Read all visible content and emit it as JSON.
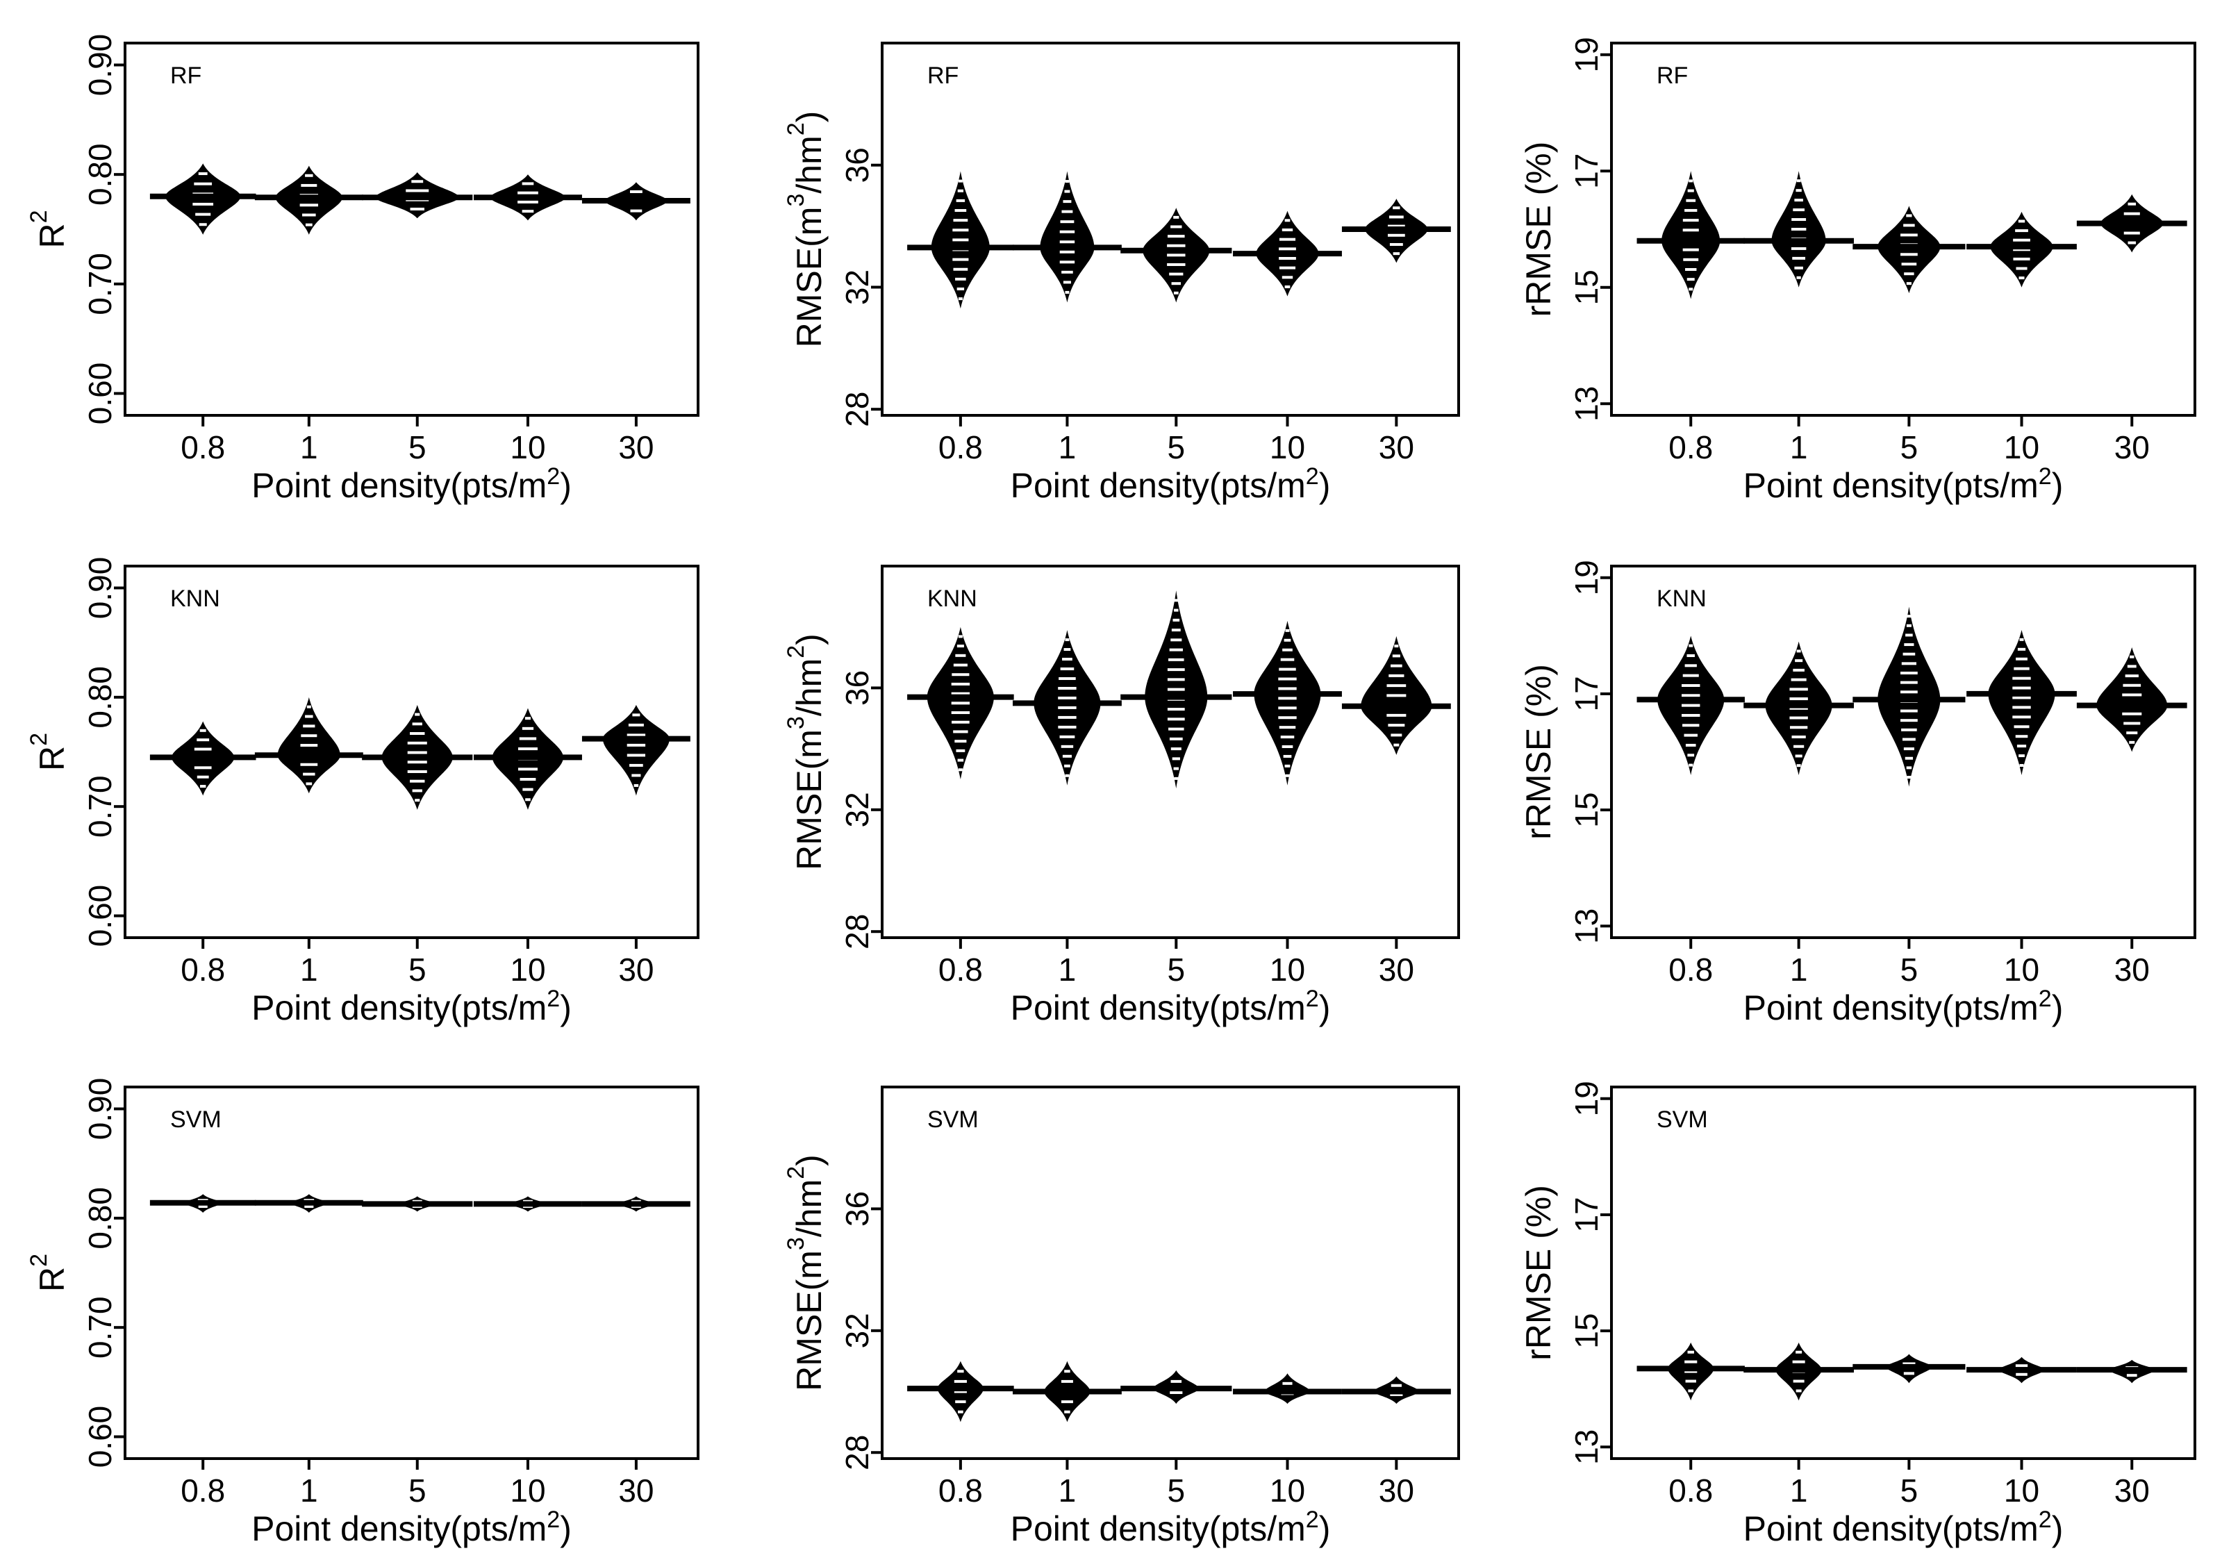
{
  "figure": {
    "x_axis_label": "Point density(pts/m²)",
    "colors": {
      "violin": "#000000",
      "stripe": "#ffffff",
      "background": "#ffffff"
    }
  },
  "chart_data": [
    {
      "type": "violin",
      "title": "",
      "panel_label": "RF",
      "metric": "R2",
      "ylabel": "R²",
      "ylim": [
        0.58,
        0.92
      ],
      "yticks": [
        "0.60",
        "0.70",
        "0.80",
        "0.90"
      ],
      "ytick_values": [
        0.6,
        0.7,
        0.8,
        0.9
      ],
      "xlabel": "Point density(pts/m²)",
      "categories": [
        "0.8",
        "1",
        "5",
        "10",
        "30"
      ],
      "series": [
        {
          "name": "RF R2",
          "mean": [
            0.78,
            0.779,
            0.779,
            0.779,
            0.776
          ],
          "min": [
            0.745,
            0.745,
            0.76,
            0.758,
            0.758
          ],
          "max": [
            0.81,
            0.808,
            0.802,
            0.8,
            0.793
          ],
          "width": [
            0.9,
            0.8,
            1.0,
            0.9,
            0.75
          ]
        }
      ]
    },
    {
      "type": "violin",
      "title": "",
      "panel_label": "RF",
      "metric": "RMSE",
      "ylabel": "RMSE(m³/hm²)",
      "ylim": [
        27.8,
        40.0
      ],
      "yticks": [
        "28",
        "32",
        "36"
      ],
      "ytick_values": [
        28,
        32,
        36
      ],
      "xlabel": "Point density(pts/m²)",
      "categories": [
        "0.8",
        "1",
        "5",
        "10",
        "30"
      ],
      "series": [
        {
          "name": "RF RMSE",
          "mean": [
            33.3,
            33.3,
            33.2,
            33.1,
            33.9
          ],
          "min": [
            31.3,
            31.5,
            31.5,
            31.7,
            32.8
          ],
          "max": [
            35.8,
            35.8,
            34.6,
            34.5,
            34.9
          ],
          "width": [
            0.7,
            0.65,
            0.8,
            0.75,
            0.75
          ]
        }
      ]
    },
    {
      "type": "violin",
      "title": "",
      "panel_label": "RF",
      "metric": "rRMSE",
      "ylabel": "rRMSE (%)",
      "ylim": [
        12.8,
        19.2
      ],
      "yticks": [
        "13",
        "15",
        "17",
        "19"
      ],
      "ytick_values": [
        13,
        15,
        17,
        19
      ],
      "xlabel": "Point density(pts/m²)",
      "categories": [
        "0.8",
        "1",
        "5",
        "10",
        "30"
      ],
      "series": [
        {
          "name": "RF rRMSE",
          "mean": [
            15.8,
            15.8,
            15.7,
            15.7,
            16.1
          ],
          "min": [
            14.8,
            15.0,
            14.9,
            15.0,
            15.6
          ],
          "max": [
            17.0,
            17.0,
            16.4,
            16.3,
            16.6
          ],
          "width": [
            0.7,
            0.65,
            0.75,
            0.75,
            0.75
          ]
        }
      ]
    },
    {
      "type": "violin",
      "title": "",
      "panel_label": "KNN",
      "metric": "R2",
      "ylabel": "R²",
      "ylim": [
        0.58,
        0.92
      ],
      "yticks": [
        "0.60",
        "0.70",
        "0.80",
        "0.90"
      ],
      "ytick_values": [
        0.6,
        0.7,
        0.8,
        0.9
      ],
      "xlabel": "Point density(pts/m²)",
      "categories": [
        "0.8",
        "1",
        "5",
        "10",
        "30"
      ],
      "series": [
        {
          "name": "KNN R2",
          "mean": [
            0.745,
            0.747,
            0.745,
            0.745,
            0.762
          ],
          "min": [
            0.71,
            0.712,
            0.697,
            0.697,
            0.71
          ],
          "max": [
            0.778,
            0.8,
            0.793,
            0.79,
            0.793
          ],
          "width": [
            0.75,
            0.75,
            0.85,
            0.85,
            0.8
          ]
        }
      ]
    },
    {
      "type": "violin",
      "title": "",
      "panel_label": "KNN",
      "metric": "RMSE",
      "ylabel": "RMSE(m³/hm²)",
      "ylim": [
        27.8,
        40.0
      ],
      "yticks": [
        "28",
        "32",
        "36"
      ],
      "ytick_values": [
        28,
        32,
        36
      ],
      "xlabel": "Point density(pts/m²)",
      "categories": [
        "0.8",
        "1",
        "5",
        "10",
        "30"
      ],
      "series": [
        {
          "name": "KNN RMSE",
          "mean": [
            35.7,
            35.5,
            35.7,
            35.8,
            35.4
          ],
          "min": [
            33.0,
            32.8,
            32.7,
            32.8,
            33.8
          ],
          "max": [
            38.0,
            37.9,
            39.2,
            38.2,
            37.7
          ],
          "width": [
            0.8,
            0.8,
            0.75,
            0.8,
            0.85
          ]
        }
      ]
    },
    {
      "type": "violin",
      "title": "",
      "panel_label": "KNN",
      "metric": "rRMSE",
      "ylabel": "rRMSE (%)",
      "ylim": [
        12.8,
        19.2
      ],
      "yticks": [
        "13",
        "15",
        "17",
        "19"
      ],
      "ytick_values": [
        13,
        15,
        17,
        19
      ],
      "xlabel": "Point density(pts/m²)",
      "categories": [
        "0.8",
        "1",
        "5",
        "10",
        "30"
      ],
      "series": [
        {
          "name": "KNN rRMSE",
          "mean": [
            16.9,
            16.8,
            16.9,
            17.0,
            16.8
          ],
          "min": [
            15.6,
            15.6,
            15.4,
            15.6,
            16.0
          ],
          "max": [
            18.0,
            17.9,
            18.5,
            18.1,
            17.8
          ],
          "width": [
            0.8,
            0.8,
            0.75,
            0.8,
            0.85
          ]
        }
      ]
    },
    {
      "type": "violin",
      "title": "",
      "panel_label": "SVM",
      "metric": "R2",
      "ylabel": "R²",
      "ylim": [
        0.58,
        0.92
      ],
      "yticks": [
        "0.60",
        "0.70",
        "0.80",
        "0.90"
      ],
      "ytick_values": [
        0.6,
        0.7,
        0.8,
        0.9
      ],
      "xlabel": "Point density(pts/m²)",
      "categories": [
        "0.8",
        "1",
        "5",
        "10",
        "30"
      ],
      "series": [
        {
          "name": "SVM R2",
          "mean": [
            0.814,
            0.814,
            0.813,
            0.813,
            0.813
          ],
          "min": [
            0.805,
            0.805,
            0.806,
            0.806,
            0.806
          ],
          "max": [
            0.822,
            0.822,
            0.82,
            0.82,
            0.82
          ],
          "width": [
            0.45,
            0.45,
            0.45,
            0.45,
            0.45
          ]
        }
      ]
    },
    {
      "type": "violin",
      "title": "",
      "panel_label": "SVM",
      "metric": "RMSE",
      "ylabel": "RMSE(m³/hm²)",
      "ylim": [
        27.8,
        40.0
      ],
      "yticks": [
        "28",
        "32",
        "36"
      ],
      "ytick_values": [
        28,
        32,
        36
      ],
      "xlabel": "Point density(pts/m²)",
      "categories": [
        "0.8",
        "1",
        "5",
        "10",
        "30"
      ],
      "series": [
        {
          "name": "SVM RMSE",
          "mean": [
            30.1,
            30.0,
            30.1,
            30.0,
            30.0
          ],
          "min": [
            29.0,
            29.0,
            29.6,
            29.6,
            29.6
          ],
          "max": [
            31.0,
            31.0,
            30.7,
            30.6,
            30.5
          ],
          "width": [
            0.55,
            0.55,
            0.55,
            0.55,
            0.55
          ]
        }
      ]
    },
    {
      "type": "violin",
      "title": "",
      "panel_label": "SVM",
      "metric": "rRMSE",
      "ylabel": "rRMSE (%)",
      "ylim": [
        12.8,
        19.2
      ],
      "yticks": [
        "13",
        "15",
        "17",
        "19"
      ],
      "ytick_values": [
        13,
        15,
        17,
        19
      ],
      "xlabel": "Point density(pts/m²)",
      "categories": [
        "0.8",
        "1",
        "5",
        "10",
        "30"
      ],
      "series": [
        {
          "name": "SVM rRMSE",
          "mean": [
            14.35,
            14.33,
            14.38,
            14.33,
            14.33
          ],
          "min": [
            13.8,
            13.8,
            14.1,
            14.1,
            14.1
          ],
          "max": [
            14.8,
            14.8,
            14.6,
            14.55,
            14.5
          ],
          "width": [
            0.55,
            0.55,
            0.55,
            0.55,
            0.55
          ]
        }
      ]
    }
  ]
}
